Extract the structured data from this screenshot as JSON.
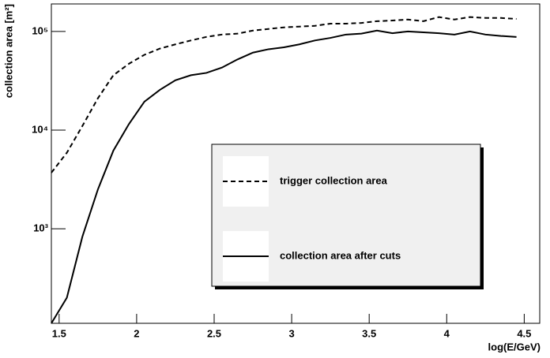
{
  "chart_data": {
    "type": "line",
    "x_label": "log(E/GeV)",
    "y_label": "collection area [m²]",
    "log_y": true,
    "x": [
      1.45,
      1.55,
      1.65,
      1.75,
      1.85,
      1.95,
      2.05,
      2.15,
      2.25,
      2.35,
      2.45,
      2.55,
      2.65,
      2.75,
      2.85,
      2.95,
      3.05,
      3.15,
      3.25,
      3.35,
      3.45,
      3.55,
      3.65,
      3.75,
      3.85,
      3.95,
      4.05,
      4.15,
      4.25,
      4.35,
      4.45
    ],
    "series": [
      {
        "name": "trigger collection area",
        "color": "#000000",
        "dash": "dashed",
        "values": [
          3700,
          5900,
          11000,
          21000,
          36000,
          47000,
          58000,
          67000,
          74000,
          81000,
          88000,
          93000,
          95000,
          102000,
          106000,
          110000,
          112000,
          114000,
          120000,
          120000,
          122000,
          127000,
          129000,
          132000,
          127000,
          140000,
          132000,
          140000,
          137000,
          137000,
          134000
        ]
      },
      {
        "name": "collection area after cuts",
        "color": "#000000",
        "dash": "solid",
        "values": [
          110,
          200,
          830,
          2500,
          6200,
          11500,
          19400,
          25600,
          32000,
          36000,
          38000,
          43000,
          52000,
          61000,
          66000,
          69000,
          74000,
          81000,
          86000,
          93000,
          95000,
          102000,
          96000,
          100000,
          98000,
          96000,
          93000,
          100000,
          93000,
          90000,
          88000
        ]
      }
    ],
    "xlim": [
      1.45,
      4.6
    ],
    "xticks": [
      1.5,
      2,
      2.5,
      3,
      3.5,
      4,
      4.5
    ],
    "ylim": [
      110,
      190000
    ],
    "yticks": [
      {
        "value": 1000,
        "label": "10³"
      },
      {
        "value": 10000,
        "label": "10⁴"
      },
      {
        "value": 100000,
        "label": "10⁵"
      }
    ]
  }
}
